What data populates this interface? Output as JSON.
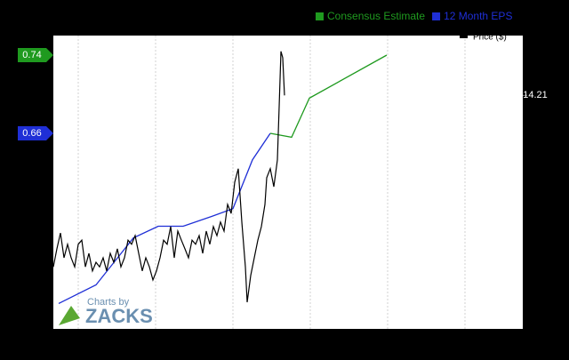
{
  "chart_data": {
    "type": "line",
    "legend_position": "top right",
    "series": [
      {
        "name": "12 Month EPS",
        "color": "#1f2fd6",
        "axis": "y",
        "x": [
          1.5,
          12,
          22.5,
          29.5,
          36.5,
          44.5,
          50.5,
          56,
          61
        ],
        "values": [
          0.486,
          0.505,
          0.553,
          0.565,
          0.565,
          0.575,
          0.583,
          0.633,
          0.66
        ]
      },
      {
        "name": "Consensus Estimate",
        "color": "#1f9a1f",
        "axis": "y",
        "x": [
          61,
          67,
          72,
          93.75
        ],
        "values": [
          0.66,
          0.656,
          0.696,
          0.74
        ]
      },
      {
        "name": "Price ($)",
        "color": "#000000",
        "axis": "y2",
        "x": [
          0,
          1,
          2,
          3,
          4,
          5,
          6,
          7,
          8,
          9,
          10,
          11,
          12,
          13,
          14,
          15,
          16,
          17,
          18,
          19,
          20,
          21,
          22,
          23,
          24,
          25,
          26,
          27,
          28,
          29,
          30,
          31,
          32,
          33,
          34,
          35,
          36,
          37,
          38,
          39,
          40,
          41,
          42,
          43,
          44,
          45,
          46,
          47,
          48,
          49,
          50,
          51,
          52,
          52.5,
          53,
          54,
          54.5,
          55.5,
          56.5,
          57.5,
          58.5,
          59.5,
          60,
          61,
          62,
          63,
          63.5,
          64,
          64.5,
          65
        ],
        "values": [
          9.65,
          10.13,
          10.55,
          9.89,
          10.25,
          9.89,
          9.65,
          10.25,
          10.36,
          9.65,
          10.01,
          9.54,
          9.77,
          9.65,
          9.89,
          9.54,
          10.01,
          9.77,
          10.13,
          9.65,
          9.89,
          10.36,
          10.25,
          10.48,
          10.01,
          9.54,
          9.89,
          9.65,
          9.3,
          9.54,
          9.89,
          10.36,
          10.25,
          10.72,
          9.89,
          10.6,
          10.36,
          10.13,
          9.89,
          10.36,
          10.25,
          10.48,
          10.01,
          10.6,
          10.25,
          10.72,
          10.48,
          10.84,
          10.6,
          11.31,
          11.07,
          11.9,
          12.26,
          11.55,
          10.84,
          9.65,
          8.71,
          9.42,
          9.89,
          10.36,
          10.72,
          11.31,
          12.02,
          12.26,
          11.78,
          12.49,
          13.91,
          15.38,
          15.21,
          14.21
        ]
      }
    ],
    "xlim": [
      0,
      132
    ],
    "ylim": [
      0.46,
      0.76
    ],
    "yticks": [
      0.66,
      0.74
    ],
    "y2lim": [
      8,
      15.8
    ],
    "y2ticks": [
      14.21
    ],
    "watermark": {
      "line1": "Charts by",
      "line2": "ZACKS"
    }
  }
}
